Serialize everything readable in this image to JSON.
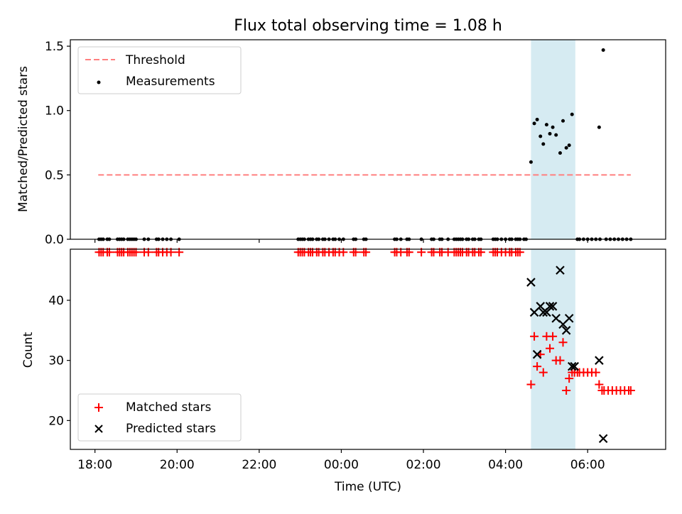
{
  "figure": {
    "title": "Flux total observing time = 1.08 h"
  },
  "colors": {
    "threshold": "#ff7f7f",
    "measurement": "#000000",
    "matched": "#ff0000",
    "predicted": "#000000",
    "highlight": "#add8e6"
  },
  "chart_data": [
    {
      "type": "scatter",
      "ylabel": "Matched/Predicted stars",
      "xlim": [
        -0.6,
        13.9
      ],
      "ylim": [
        0,
        1.55
      ],
      "yticks": [
        0,
        0.5,
        1.0,
        1.5
      ],
      "ytick_labels": [
        "0.0",
        "0.5",
        "1.0",
        "1.5"
      ],
      "highlight_span": [
        10.62,
        11.7
      ],
      "legend": {
        "position": "upper-left",
        "entries": [
          "Threshold",
          "Measurements"
        ]
      },
      "threshold": {
        "name": "Threshold",
        "value": 0.5,
        "x_range": [
          0.08,
          13.05
        ]
      },
      "series": [
        {
          "name": "Measurements",
          "x": [
            0.1,
            0.15,
            0.2,
            0.3,
            0.35,
            0.55,
            0.6,
            0.65,
            0.7,
            0.8,
            0.85,
            0.9,
            0.95,
            1.0,
            1.2,
            1.3,
            1.5,
            1.55,
            1.65,
            1.75,
            1.85,
            2.05,
            4.95,
            5.0,
            5.05,
            5.1,
            5.2,
            5.25,
            5.3,
            5.4,
            5.45,
            5.55,
            5.6,
            5.7,
            5.8,
            5.85,
            5.95,
            6.05,
            6.3,
            6.35,
            6.55,
            6.6,
            7.3,
            7.35,
            7.45,
            7.6,
            7.65,
            7.95,
            8.2,
            8.25,
            8.4,
            8.45,
            8.6,
            8.75,
            8.8,
            8.85,
            8.9,
            8.95,
            9.05,
            9.1,
            9.2,
            9.25,
            9.35,
            9.4,
            9.7,
            9.75,
            9.8,
            9.9,
            10.0,
            10.1,
            10.15,
            10.25,
            10.3,
            10.35,
            10.45,
            10.5,
            11.75,
            11.8,
            11.9,
            12.0,
            12.1,
            12.2,
            12.3,
            12.45,
            12.55,
            12.65,
            12.75,
            12.85,
            12.95,
            13.05,
            10.62,
            10.7,
            10.77,
            10.85,
            10.92,
            11.0,
            11.08,
            11.15,
            11.23,
            11.33,
            11.4,
            11.48,
            11.55,
            11.62,
            12.28,
            12.38
          ],
          "y": [
            0,
            0,
            0,
            0,
            0,
            0,
            0,
            0,
            0,
            0,
            0,
            0,
            0,
            0,
            0,
            0,
            0,
            0,
            0,
            0,
            0,
            0,
            0,
            0,
            0,
            0,
            0,
            0,
            0,
            0,
            0,
            0,
            0,
            0,
            0,
            0,
            0,
            0,
            0,
            0,
            0,
            0,
            0,
            0,
            0,
            0,
            0,
            0,
            0,
            0,
            0,
            0,
            0,
            0,
            0,
            0,
            0,
            0,
            0,
            0,
            0,
            0,
            0,
            0,
            0,
            0,
            0,
            0,
            0,
            0,
            0,
            0,
            0,
            0,
            0,
            0,
            0,
            0,
            0,
            0,
            0,
            0,
            0,
            0,
            0,
            0,
            0,
            0,
            0,
            0,
            0.6,
            0.9,
            0.93,
            0.8,
            0.74,
            0.89,
            0.82,
            0.87,
            0.81,
            0.67,
            0.92,
            0.71,
            0.73,
            0.97,
            0.87,
            1.47
          ]
        }
      ]
    },
    {
      "type": "scatter",
      "xlabel": "Time (UTC)",
      "ylabel": "Count",
      "xlim": [
        -0.6,
        13.9
      ],
      "ylim": [
        15.2,
        48.5
      ],
      "xticks": [
        0,
        2,
        4,
        6,
        8,
        10,
        12
      ],
      "xtick_labels": [
        "18:00",
        "20:00",
        "22:00",
        "00:00",
        "02:00",
        "04:00",
        "06:00"
      ],
      "yticks": [
        20,
        30,
        40
      ],
      "ytick_labels": [
        "20",
        "30",
        "40"
      ],
      "highlight_span": [
        10.62,
        11.7
      ],
      "legend": {
        "position": "lower-left",
        "entries": [
          "Matched stars",
          "Predicted stars"
        ]
      },
      "series": [
        {
          "name": "Matched stars",
          "marker": "plus",
          "x": [
            0.1,
            0.15,
            0.2,
            0.3,
            0.35,
            0.55,
            0.6,
            0.65,
            0.7,
            0.8,
            0.85,
            0.9,
            0.95,
            1.0,
            1.2,
            1.3,
            1.5,
            1.55,
            1.65,
            1.75,
            1.85,
            2.05,
            4.95,
            5.0,
            5.05,
            5.1,
            5.2,
            5.25,
            5.3,
            5.4,
            5.45,
            5.55,
            5.6,
            5.7,
            5.8,
            5.85,
            5.95,
            6.05,
            6.3,
            6.35,
            6.55,
            6.6,
            7.3,
            7.35,
            7.45,
            7.6,
            7.65,
            7.95,
            8.2,
            8.25,
            8.4,
            8.45,
            8.6,
            8.75,
            8.8,
            8.85,
            8.9,
            8.95,
            9.05,
            9.1,
            9.2,
            9.25,
            9.35,
            9.4,
            9.7,
            9.75,
            9.8,
            9.9,
            10.0,
            10.1,
            10.15,
            10.25,
            10.3,
            10.35,
            10.62,
            10.7,
            10.77,
            10.85,
            10.92,
            11.0,
            11.08,
            11.15,
            11.23,
            11.33,
            11.4,
            11.48,
            11.55,
            11.62,
            11.68,
            11.75,
            11.8,
            11.9,
            12.0,
            12.1,
            12.2,
            12.28,
            12.35,
            12.4,
            12.5,
            12.6,
            12.7,
            12.8,
            12.9,
            13.0,
            13.05
          ],
          "y": [
            48,
            48,
            48,
            48,
            48,
            48,
            48,
            48,
            48,
            48,
            48,
            48,
            48,
            48,
            48,
            48,
            48,
            48,
            48,
            48,
            48,
            48,
            48,
            48,
            48,
            48,
            48,
            48,
            48,
            48,
            48,
            48,
            48,
            48,
            48,
            48,
            48,
            48,
            48,
            48,
            48,
            48,
            48,
            48,
            48,
            48,
            48,
            48,
            48,
            48,
            48,
            48,
            48,
            48,
            48,
            48,
            48,
            48,
            48,
            48,
            48,
            48,
            48,
            48,
            48,
            48,
            48,
            48,
            48,
            48,
            48,
            48,
            48,
            48,
            26,
            34,
            29,
            31,
            28,
            34,
            32,
            34,
            30,
            30,
            33,
            25,
            27,
            28,
            28,
            28,
            28,
            28,
            28,
            28,
            28,
            26,
            25,
            25,
            25,
            25,
            25,
            25,
            25,
            25,
            25
          ]
        },
        {
          "name": "Predicted stars",
          "marker": "x",
          "x": [
            10.62,
            10.7,
            10.77,
            10.85,
            10.92,
            11.0,
            11.08,
            11.15,
            11.23,
            11.33,
            11.4,
            11.48,
            11.55,
            11.62,
            11.68,
            12.28,
            12.38
          ],
          "y": [
            43,
            38,
            31,
            39,
            38,
            38,
            39,
            39,
            37,
            45,
            36,
            35,
            37,
            29,
            29,
            30,
            17
          ]
        }
      ]
    }
  ]
}
